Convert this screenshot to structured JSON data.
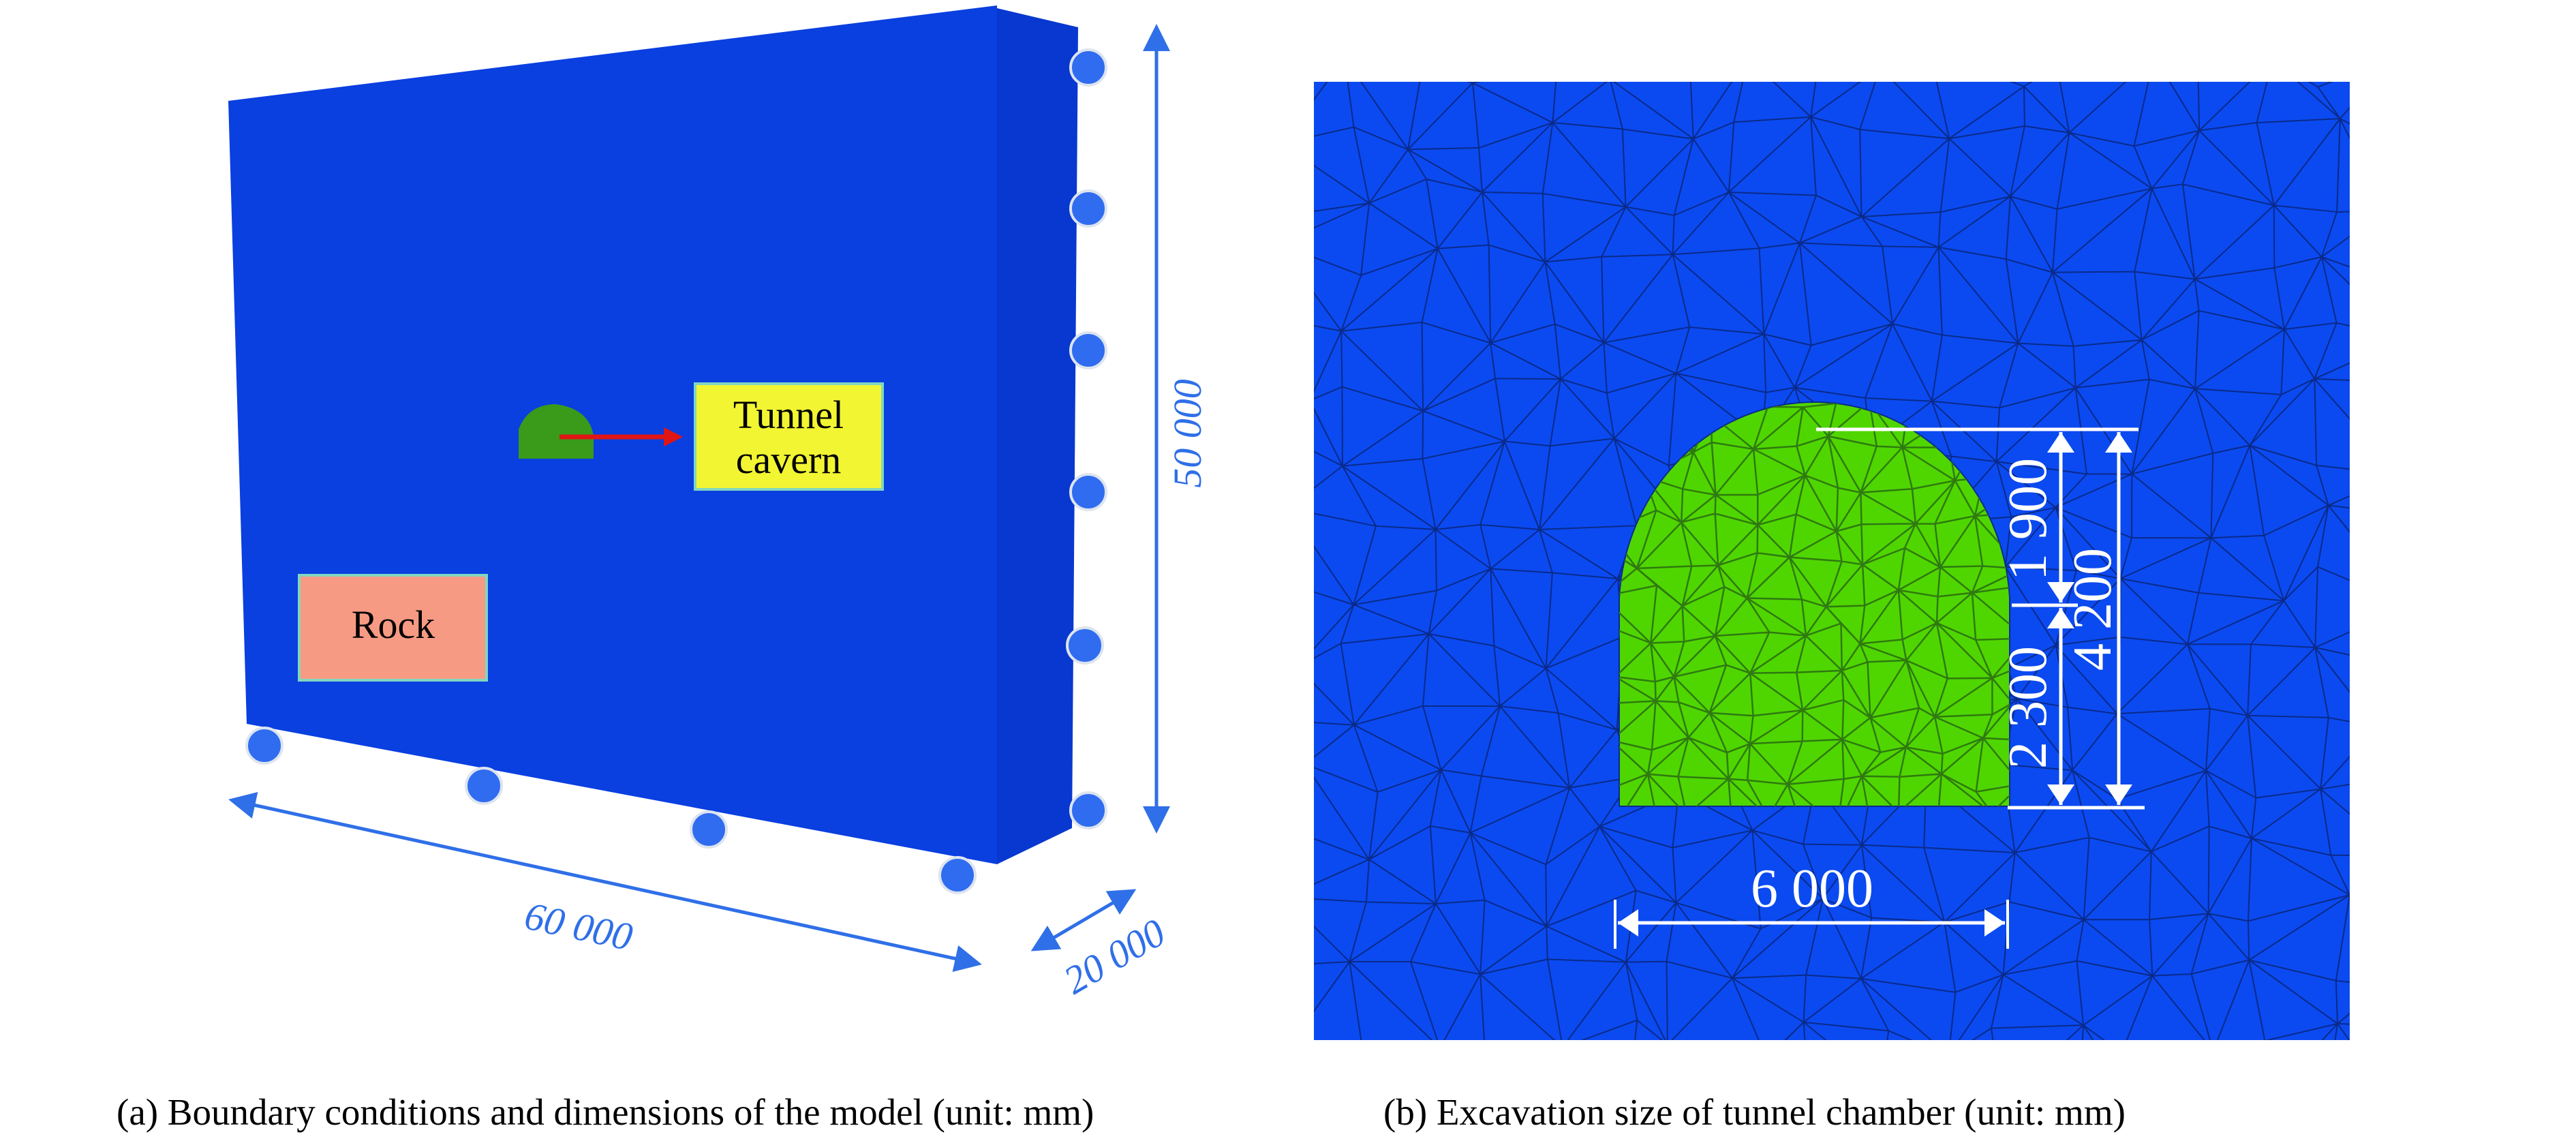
{
  "panel_a": {
    "labels": {
      "tunnel_line1": "Tunnel",
      "tunnel_line2": "cavern",
      "rock": "Rock"
    },
    "dimensions": {
      "height": "50 000",
      "length": "60 000",
      "depth": "20 000"
    },
    "caption": "(a) Boundary conditions and dimensions of the model (unit: mm)"
  },
  "panel_b": {
    "dimensions": {
      "arch_height": "1 900",
      "wall_height": "2 300",
      "total_height": "4 200",
      "width": "6 000"
    },
    "caption": "(b) Excavation size of tunnel chamber (unit: mm)"
  },
  "colors": {
    "rock": "#0a3fe0",
    "mesh_blue": "#0b4af0",
    "cavern": "#4fd600",
    "dimension_blue": "#2f6fe8",
    "support_dot": "#2f6cf0",
    "tunnel_label_bg": "#f2f532",
    "rock_label_bg": "#f79a84",
    "arrow_red": "#e01515"
  }
}
